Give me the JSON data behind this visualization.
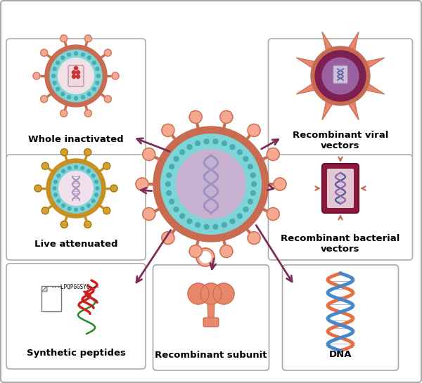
{
  "bg_color": "#ffffff",
  "salmon": "#E8876A",
  "dark_salmon": "#C96B50",
  "light_salmon": "#F4A990",
  "teal": "#7DD5D8",
  "dark_teal": "#55B5BA",
  "purple_arrow": "#7B2D58",
  "gold": "#D4A82A",
  "dark_gold": "#B8860B",
  "figsize": [
    6.0,
    5.45
  ],
  "dpi": 100,
  "labels": {
    "whole_inactivated": "Whole inactivated",
    "live_attenuated": "Live attenuated",
    "synthetic_peptides": "Synthetic peptides",
    "recombinant_subunit": "Recombinant subunit",
    "recombinant_viral": "Recombinant viral\nvectors",
    "recombinant_bacterial": "Recombinant bacterial\nvectors",
    "dna": "DNA"
  }
}
